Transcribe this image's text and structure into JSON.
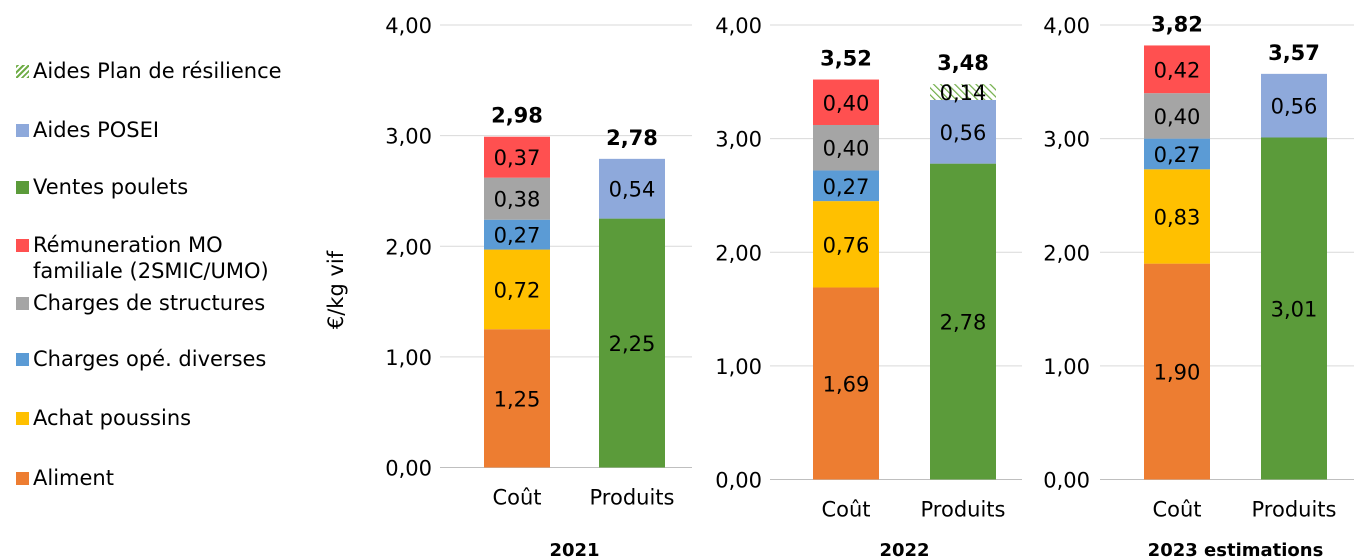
{
  "chart_data": {
    "type": "bar",
    "stacked": true,
    "ylabel": "€/kg vif",
    "ylim": [
      0,
      4
    ],
    "yticks": [
      "0,00",
      "1,00",
      "2,00",
      "3,00",
      "4,00"
    ],
    "categories": [
      "Coût",
      "Produits"
    ],
    "legend_position": "left",
    "legend": [
      {
        "name": "Aides Plan de résilience",
        "color": "#70AD47",
        "pattern": "hatched"
      },
      {
        "name": "Aides POSEI",
        "color": "#8EA9DB"
      },
      {
        "name": "Ventes poulets",
        "color": "#5B9B3A"
      },
      {
        "name": "Rémuneration MO\nfamiliale (2SMIC/UMO)",
        "color": "#FF5050"
      },
      {
        "name": "Charges de structures",
        "color": "#A5A5A5"
      },
      {
        "name": "Charges opé. diverses",
        "color": "#5B9BD5"
      },
      {
        "name": "Achat poussins",
        "color": "#FFC000"
      },
      {
        "name": "Aliment",
        "color": "#ED7D31"
      }
    ],
    "panels": [
      {
        "title": "2021",
        "bars": [
          {
            "category": "Coût",
            "total": "2,98",
            "segments": [
              {
                "series": "Aliment",
                "value": 1.25,
                "label": "1,25",
                "color": "#ED7D31"
              },
              {
                "series": "Achat poussins",
                "value": 0.72,
                "label": "0,72",
                "color": "#FFC000"
              },
              {
                "series": "Charges opé. diverses",
                "value": 0.27,
                "label": "0,27",
                "color": "#5B9BD5"
              },
              {
                "series": "Charges de structures",
                "value": 0.38,
                "label": "0,38",
                "color": "#A5A5A5"
              },
              {
                "series": "Rémuneration MO familiale (2SMIC/UMO)",
                "value": 0.37,
                "label": "0,37",
                "color": "#FF5050"
              }
            ]
          },
          {
            "category": "Produits",
            "total": "2,78",
            "segments": [
              {
                "series": "Ventes poulets",
                "value": 2.25,
                "label": "2,25",
                "color": "#5B9B3A"
              },
              {
                "series": "Aides POSEI",
                "value": 0.54,
                "label": "0,54",
                "color": "#8EA9DB"
              }
            ]
          }
        ]
      },
      {
        "title": "2022",
        "bars": [
          {
            "category": "Coût",
            "total": "3,52",
            "segments": [
              {
                "series": "Aliment",
                "value": 1.69,
                "label": "1,69",
                "color": "#ED7D31"
              },
              {
                "series": "Achat poussins",
                "value": 0.76,
                "label": "0,76",
                "color": "#FFC000"
              },
              {
                "series": "Charges opé. diverses",
                "value": 0.27,
                "label": "0,27",
                "color": "#5B9BD5"
              },
              {
                "series": "Charges de structures",
                "value": 0.4,
                "label": "0,40",
                "color": "#A5A5A5"
              },
              {
                "series": "Rémuneration MO familiale (2SMIC/UMO)",
                "value": 0.4,
                "label": "0,40",
                "color": "#FF5050"
              }
            ]
          },
          {
            "category": "Produits",
            "total": "3,48",
            "segments": [
              {
                "series": "Ventes poulets",
                "value": 2.78,
                "label": "2,78",
                "color": "#5B9B3A"
              },
              {
                "series": "Aides POSEI",
                "value": 0.56,
                "label": "0,56",
                "color": "#8EA9DB"
              },
              {
                "series": "Aides Plan de résilience",
                "value": 0.14,
                "label": "0,14",
                "color": "#70AD47",
                "pattern": "hatched"
              }
            ]
          }
        ]
      },
      {
        "title": "2023 estimations",
        "bars": [
          {
            "category": "Coût",
            "total": "3,82",
            "segments": [
              {
                "series": "Aliment",
                "value": 1.9,
                "label": "1,90",
                "color": "#ED7D31"
              },
              {
                "series": "Achat poussins",
                "value": 0.83,
                "label": "0,83",
                "color": "#FFC000"
              },
              {
                "series": "Charges opé. diverses",
                "value": 0.27,
                "label": "0,27",
                "color": "#5B9BD5"
              },
              {
                "series": "Charges de structures",
                "value": 0.4,
                "label": "0,40",
                "color": "#A5A5A5"
              },
              {
                "series": "Rémuneration MO familiale (2SMIC/UMO)",
                "value": 0.42,
                "label": "0,42",
                "color": "#FF5050"
              }
            ]
          },
          {
            "category": "Produits",
            "total": "3,57",
            "segments": [
              {
                "series": "Ventes poulets",
                "value": 3.01,
                "label": "3,01",
                "color": "#5B9B3A"
              },
              {
                "series": "Aides POSEI",
                "value": 0.56,
                "label": "0,56",
                "color": "#8EA9DB"
              }
            ]
          }
        ]
      }
    ]
  }
}
